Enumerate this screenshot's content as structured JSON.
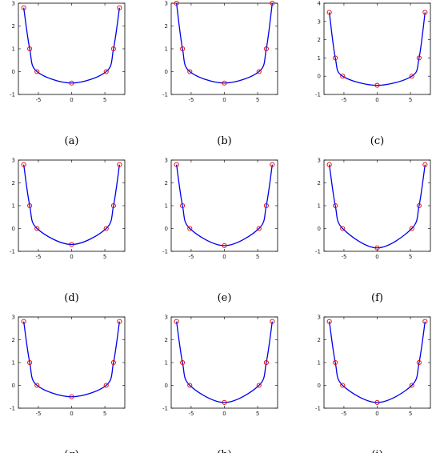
{
  "figure": {
    "panels_layout": "3x3 grid"
  },
  "colors": {
    "curve": "#0000ee",
    "marker": "#e00000",
    "axes": "#000000"
  },
  "chart_data": [
    {
      "caption": "(a)",
      "type": "line",
      "ylim": [
        -1,
        3
      ],
      "yticks": [
        -1,
        0,
        1,
        2,
        3
      ],
      "xlim": [
        -8,
        8
      ],
      "xticks": [
        -5,
        0,
        5
      ],
      "series": [
        {
          "x": [
            -7.2,
            -6.3,
            -5.2,
            0,
            5.2,
            6.3,
            7.2
          ],
          "y": [
            2.8,
            1.0,
            0.0,
            -0.5,
            0.0,
            1.0,
            2.8
          ]
        }
      ]
    },
    {
      "caption": "(b)",
      "type": "line",
      "ylim": [
        -1,
        3
      ],
      "yticks": [
        -1,
        0,
        1,
        2,
        3
      ],
      "xlim": [
        -8,
        8
      ],
      "xticks": [
        -5,
        0,
        5
      ],
      "series": [
        {
          "x": [
            -7.2,
            -6.3,
            -5.2,
            0,
            5.2,
            6.3,
            7.2
          ],
          "y": [
            3.0,
            1.0,
            0.0,
            -0.5,
            0.0,
            1.0,
            3.0
          ]
        }
      ]
    },
    {
      "caption": "(c)",
      "type": "line",
      "ylim": [
        -1,
        4
      ],
      "yticks": [
        -1,
        0,
        1,
        2,
        3,
        4
      ],
      "xlim": [
        -8,
        8
      ],
      "xticks": [
        -5,
        0,
        5
      ],
      "series": [
        {
          "x": [
            -7.2,
            -6.3,
            -5.2,
            0,
            5.2,
            6.3,
            7.2
          ],
          "y": [
            3.5,
            1.0,
            0.0,
            -0.5,
            0.0,
            1.0,
            3.5
          ]
        }
      ]
    },
    {
      "caption": "(d)",
      "type": "line",
      "ylim": [
        -1,
        3
      ],
      "yticks": [
        -1,
        0,
        1,
        2,
        3
      ],
      "xlim": [
        -8,
        8
      ],
      "xticks": [
        -5,
        0,
        5
      ],
      "series": [
        {
          "x": [
            -7.2,
            -6.3,
            -5.2,
            0,
            5.2,
            6.3,
            7.2
          ],
          "y": [
            2.8,
            1.0,
            0.0,
            -0.7,
            0.0,
            1.0,
            2.8
          ]
        }
      ]
    },
    {
      "caption": "(e)",
      "type": "line",
      "ylim": [
        -1,
        3
      ],
      "yticks": [
        -1,
        0,
        1,
        2,
        3
      ],
      "xlim": [
        -8,
        8
      ],
      "xticks": [
        -5,
        0,
        5
      ],
      "series": [
        {
          "x": [
            -7.2,
            -6.3,
            -5.2,
            0,
            5.2,
            6.3,
            7.2
          ],
          "y": [
            2.8,
            1.0,
            0.0,
            -0.75,
            0.0,
            1.0,
            2.8
          ]
        }
      ]
    },
    {
      "caption": "(f)",
      "type": "line",
      "ylim": [
        -1,
        3
      ],
      "yticks": [
        -1,
        0,
        1,
        2,
        3
      ],
      "xlim": [
        -8,
        8
      ],
      "xticks": [
        -5,
        0,
        5
      ],
      "series": [
        {
          "x": [
            -7.2,
            -6.3,
            -5.2,
            0,
            5.2,
            6.3,
            7.2
          ],
          "y": [
            2.8,
            1.0,
            0.0,
            -0.85,
            0.0,
            1.0,
            2.8
          ]
        }
      ]
    },
    {
      "caption": "(g)",
      "type": "line",
      "ylim": [
        -1,
        3
      ],
      "yticks": [
        -1,
        0,
        1,
        2,
        3
      ],
      "xlim": [
        -8,
        8
      ],
      "xticks": [
        -5,
        0,
        5
      ],
      "series": [
        {
          "x": [
            -7.2,
            -6.3,
            -5.2,
            0,
            5.2,
            6.3,
            7.2
          ],
          "y": [
            2.8,
            1.0,
            0.0,
            -0.5,
            0.0,
            1.0,
            2.8
          ]
        }
      ]
    },
    {
      "caption": "(h)",
      "type": "line",
      "ylim": [
        -1,
        3
      ],
      "yticks": [
        -1,
        0,
        1,
        2,
        3
      ],
      "xlim": [
        -8,
        8
      ],
      "xticks": [
        -5,
        0,
        5
      ],
      "series": [
        {
          "x": [
            -7.2,
            -6.3,
            -5.2,
            0,
            5.2,
            6.3,
            7.2
          ],
          "y": [
            2.8,
            1.0,
            0.0,
            -0.75,
            0.0,
            1.0,
            2.8
          ]
        }
      ]
    },
    {
      "caption": "(i)",
      "type": "line",
      "ylim": [
        -1,
        3
      ],
      "yticks": [
        -1,
        0,
        1,
        2,
        3
      ],
      "xlim": [
        -8,
        8
      ],
      "xticks": [
        -5,
        0,
        5
      ],
      "series": [
        {
          "x": [
            -7.2,
            -6.3,
            -5.2,
            0,
            5.2,
            6.3,
            7.2
          ],
          "y": [
            2.8,
            1.0,
            0.0,
            -0.75,
            0.0,
            1.0,
            2.8
          ]
        }
      ]
    }
  ]
}
